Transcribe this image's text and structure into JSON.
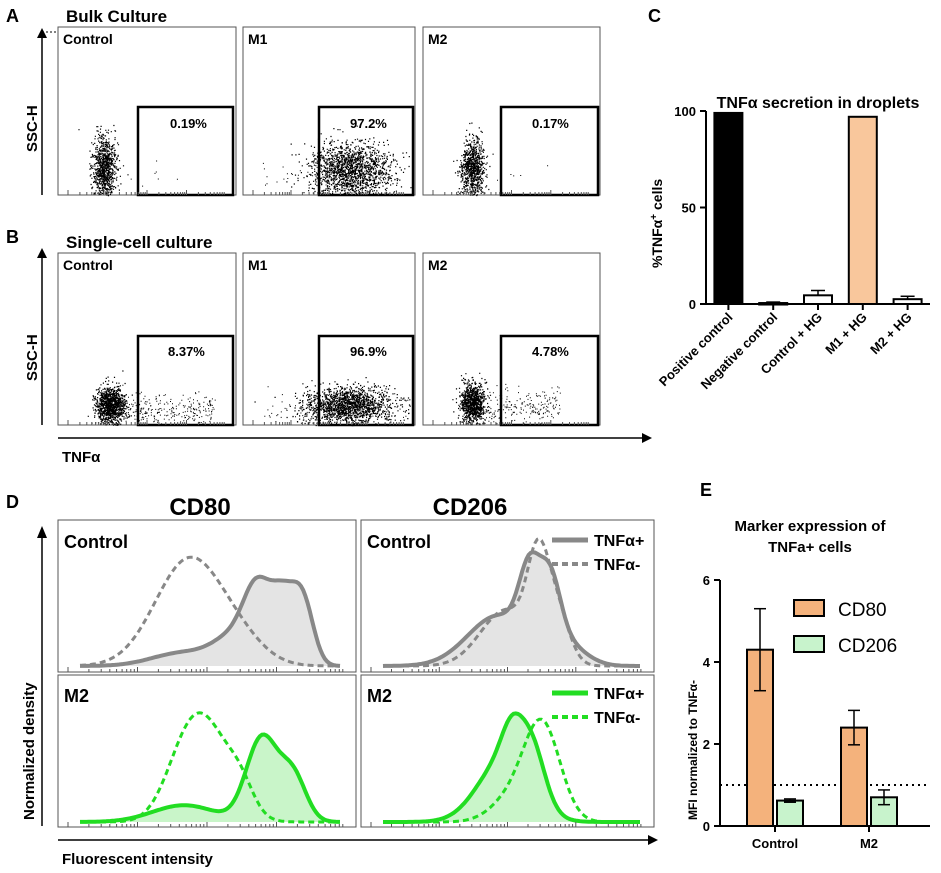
{
  "panels": {
    "A": {
      "letter": "A",
      "title": "Bulk Culture",
      "gates": [
        {
          "name": "Control",
          "pct": "0.19%"
        },
        {
          "name": "M1",
          "pct": "97.2%"
        },
        {
          "name": "M2",
          "pct": "0.17%"
        }
      ]
    },
    "B": {
      "letter": "B",
      "title": "Single-cell culture",
      "gates": [
        {
          "name": "Control",
          "pct": "8.37%"
        },
        {
          "name": "M1",
          "pct": "96.9%"
        },
        {
          "name": "M2",
          "pct": "4.78%"
        }
      ]
    },
    "ab_axes": {
      "y_label": "SSC-H",
      "x_label": "TNFα"
    },
    "C": {
      "letter": "C"
    },
    "D": {
      "letter": "D",
      "col1": "CD80",
      "col2": "CD206",
      "row1": "Control",
      "row2": "M2",
      "legend_pos": "TNFα+",
      "legend_neg": "TNFα-",
      "y_label": "Normalized density",
      "x_label": "Fluorescent intensity"
    },
    "E": {
      "letter": "E"
    }
  },
  "colors": {
    "black": "#000000",
    "peach": "#f9c79c",
    "orange": "#f4b27c",
    "mint": "#c8f3cc",
    "gray": "#888888",
    "lightgray": "#e4e4e4",
    "green": "#22dd22",
    "lightgreen": "#c9f5c9"
  },
  "chart_data": [
    {
      "id": "C",
      "type": "bar",
      "title": "TNFα secretion in droplets",
      "ylabel": "%TNFα+ cells",
      "ylim": [
        0,
        100
      ],
      "yticks": [
        0,
        50,
        100
      ],
      "categories": [
        "Positive control",
        "Negative control",
        "Control + HG",
        "M1 + HG",
        "M2 + HG"
      ],
      "values": [
        99,
        0.5,
        4.5,
        97,
        2.5
      ],
      "errors": [
        0,
        0.5,
        2.5,
        0,
        1.5
      ],
      "fills": [
        "#000000",
        "#ffffff",
        "#ffffff",
        "#f9c79c",
        "#ffffff"
      ]
    },
    {
      "id": "E",
      "type": "bar",
      "title": "Marker expression of TNFa+ cells",
      "ylabel": "MFI normalized to TNFα-",
      "ylim": [
        0,
        6
      ],
      "yticks": [
        0,
        2,
        4,
        6
      ],
      "categories": [
        "Control",
        "M2"
      ],
      "series": [
        {
          "name": "CD80",
          "values": [
            4.3,
            2.4
          ],
          "errors": [
            1.0,
            0.42
          ],
          "color": "#f4b27c"
        },
        {
          "name": "CD206",
          "values": [
            0.62,
            0.7
          ],
          "errors": [
            0.04,
            0.18
          ],
          "color": "#c8f3cc"
        }
      ],
      "reference_line": 1.0
    }
  ]
}
